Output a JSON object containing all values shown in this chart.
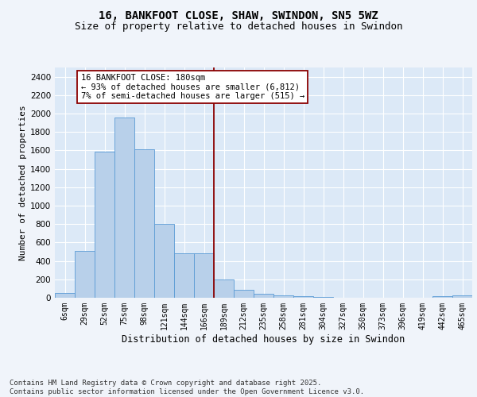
{
  "title1": "16, BANKFOOT CLOSE, SHAW, SWINDON, SN5 5WZ",
  "title2": "Size of property relative to detached houses in Swindon",
  "xlabel": "Distribution of detached houses by size in Swindon",
  "ylabel": "Number of detached properties",
  "categories": [
    "6sqm",
    "29sqm",
    "52sqm",
    "75sqm",
    "98sqm",
    "121sqm",
    "144sqm",
    "166sqm",
    "189sqm",
    "212sqm",
    "235sqm",
    "258sqm",
    "281sqm",
    "304sqm",
    "327sqm",
    "350sqm",
    "373sqm",
    "396sqm",
    "419sqm",
    "442sqm",
    "465sqm"
  ],
  "values": [
    55,
    510,
    1590,
    1960,
    1610,
    800,
    480,
    480,
    195,
    90,
    42,
    30,
    17,
    5,
    0,
    0,
    0,
    0,
    0,
    20,
    30
  ],
  "bar_color": "#b8d0ea",
  "bar_edge_color": "#5b9bd5",
  "vline_x": 7.5,
  "vline_color": "#8b0000",
  "annotation_text": "16 BANKFOOT CLOSE: 180sqm\n← 93% of detached houses are smaller (6,812)\n7% of semi-detached houses are larger (515) →",
  "box_edge_color": "#8b0000",
  "ylim": [
    0,
    2500
  ],
  "yticks": [
    0,
    200,
    400,
    600,
    800,
    1000,
    1200,
    1400,
    1600,
    1800,
    2000,
    2200,
    2400
  ],
  "plot_bg": "#dce9f7",
  "grid_color": "#ffffff",
  "fig_bg": "#f0f4fa",
  "title1_fontsize": 10,
  "title2_fontsize": 9,
  "ylabel_fontsize": 8,
  "xlabel_fontsize": 8.5,
  "annot_fontsize": 7.5,
  "tick_fontsize": 7,
  "ytick_fontsize": 7.5,
  "footer": "Contains HM Land Registry data © Crown copyright and database right 2025.\nContains public sector information licensed under the Open Government Licence v3.0.",
  "footer_fontsize": 6.5
}
